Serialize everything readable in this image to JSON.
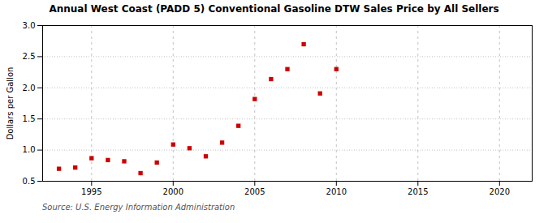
{
  "chart_data": {
    "type": "scatter",
    "title": "Annual West Coast (PADD 5) Conventional Gasoline DTW Sales Price by All Sellers",
    "ylabel": "Dollars per Gallon",
    "annotations": [
      "Source: U.S. Energy Information Administration"
    ],
    "x": [
      1993,
      1994,
      1995,
      1996,
      1997,
      1998,
      1999,
      2000,
      2001,
      2002,
      2003,
      2004,
      2005,
      2006,
      2007,
      2008,
      2009,
      2010
    ],
    "values": [
      0.7,
      0.72,
      0.87,
      0.84,
      0.82,
      0.63,
      0.8,
      1.09,
      1.03,
      0.9,
      1.12,
      1.39,
      1.82,
      2.14,
      2.3,
      2.7,
      1.91,
      2.3
    ],
    "color": "#cc0000",
    "marker": "square",
    "xlim": [
      1992,
      2022
    ],
    "xticks": [
      1995,
      2000,
      2005,
      2010,
      2015,
      2020
    ],
    "ylim": [
      0.5,
      3.0
    ],
    "yticks": [
      0.5,
      {
        "value": 1.0,
        "label": "1.0"
      },
      1.5,
      {
        "value": 2.0,
        "label": "2.0"
      },
      2.5,
      {
        "value": 3.0,
        "label": "3.0"
      }
    ],
    "grid": true
  }
}
